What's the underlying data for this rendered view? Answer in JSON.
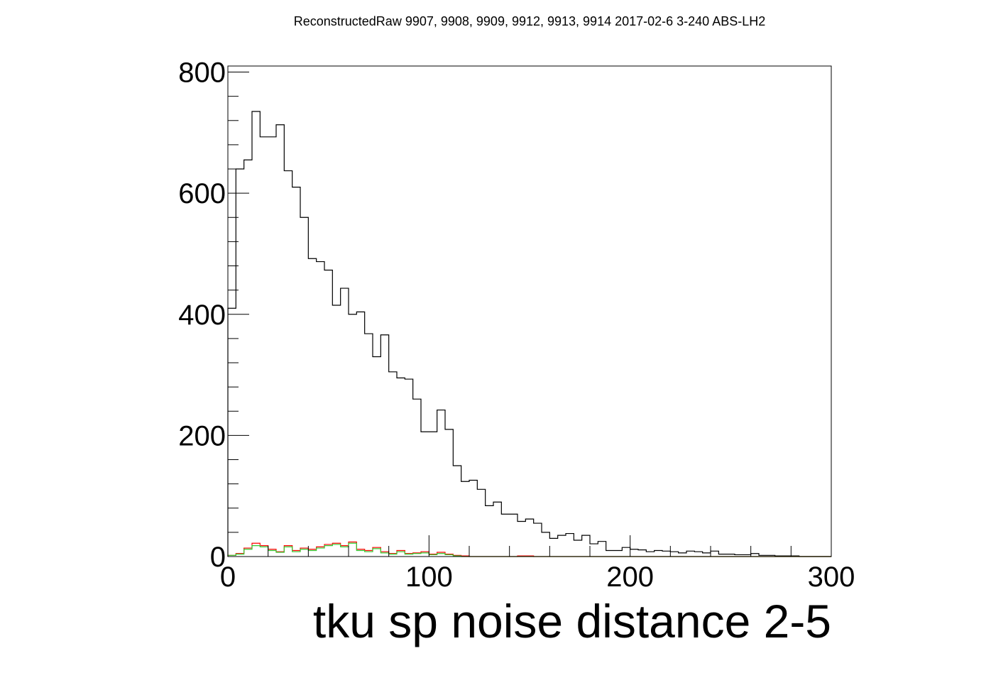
{
  "chart_data": {
    "type": "histogram",
    "title": "ReconstructedRaw 9907, 9908, 9909, 9912, 9913, 9914 2017-02-6 3-240 ABS-LH2",
    "xlabel": "tku sp noise distance 2-5",
    "ylabel": "",
    "xlim": [
      0,
      300
    ],
    "ylim": [
      0,
      810
    ],
    "bin_width": 4,
    "x_ticks": [
      0,
      100,
      200,
      300
    ],
    "y_ticks": [
      0,
      200,
      400,
      600,
      800
    ],
    "grid": false,
    "legend": "none",
    "series": [
      {
        "color": "#000000",
        "bin_start": 0,
        "values": [
          410,
          640,
          655,
          735,
          693,
          693,
          713,
          637,
          610,
          560,
          492,
          487,
          473,
          415,
          443,
          400,
          404,
          368,
          330,
          366,
          305,
          295,
          293,
          260,
          206,
          206,
          242,
          210,
          150,
          124,
          126,
          111,
          84,
          90,
          70,
          70,
          58,
          62,
          55,
          40,
          30,
          35,
          38,
          27,
          35,
          21,
          25,
          10,
          10,
          15,
          12,
          11,
          8,
          10,
          9,
          8,
          6,
          9,
          8,
          6,
          9,
          4,
          4,
          3,
          3,
          5,
          2,
          2,
          1,
          1,
          1,
          0,
          0,
          0,
          0
        ]
      },
      {
        "color": "#ff0000",
        "bin_start": 0,
        "values": [
          2,
          5,
          14,
          22,
          18,
          12,
          8,
          18,
          10,
          14,
          12,
          16,
          20,
          22,
          18,
          24,
          12,
          10,
          15,
          8,
          5,
          10,
          5,
          6,
          8,
          4,
          7,
          4,
          2,
          1,
          0,
          0,
          0,
          0,
          0,
          0,
          1,
          1,
          0,
          0,
          0,
          0,
          0,
          0,
          0,
          0,
          0,
          0,
          0,
          0,
          0,
          0,
          0,
          0,
          0,
          0,
          0,
          0,
          0,
          0,
          0,
          0,
          0,
          0,
          0,
          0,
          0,
          0,
          0,
          0,
          0,
          0,
          0,
          0,
          0
        ]
      },
      {
        "color": "#33cc33",
        "bin_start": 0,
        "values": [
          2,
          4,
          12,
          18,
          16,
          10,
          7,
          16,
          8,
          12,
          10,
          14,
          18,
          20,
          16,
          22,
          10,
          8,
          13,
          6,
          4,
          8,
          4,
          5,
          6,
          3,
          5,
          3,
          1,
          0,
          0,
          0,
          0,
          0,
          0,
          0,
          0,
          0,
          0,
          0,
          0,
          0,
          0,
          0,
          0,
          0,
          0,
          0,
          0,
          0,
          0,
          0,
          0,
          0,
          0,
          0,
          0,
          0,
          0,
          0,
          0,
          0,
          0,
          0,
          0,
          0,
          0,
          0,
          0,
          0,
          0,
          0,
          0,
          0,
          0
        ]
      }
    ]
  }
}
